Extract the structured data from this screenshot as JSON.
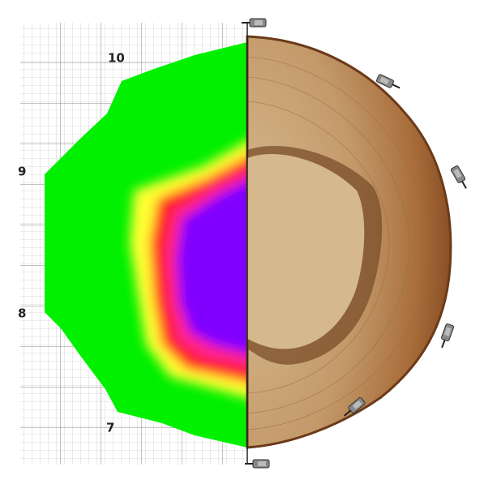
{
  "grid_labels": [
    "10",
    "9",
    "8",
    "7"
  ]
}
